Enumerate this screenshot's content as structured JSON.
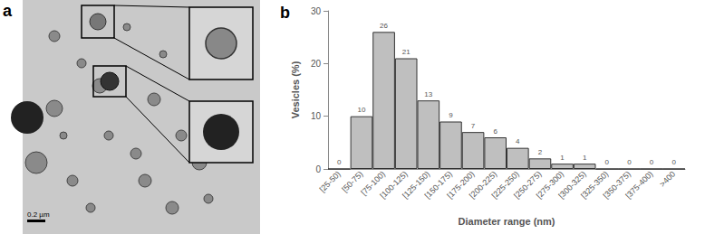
{
  "image": {
    "label": "a",
    "scale_bar": "0.2 µm"
  },
  "chart_data": {
    "type": "bar",
    "title": "b",
    "x_label": "Diameter range (nm)",
    "y_label": "Vesicles (%)",
    "categories": [
      "[25-50)",
      "[50-75)",
      "[75-100)",
      "[100-125)",
      "[125-150)",
      "[150-175)",
      "[175-200)",
      "[200-225)",
      "[225-250)",
      "[250-275)",
      "[275-300)",
      "[300-325)",
      "[325-350)",
      "[350-375)",
      "[375-400)",
      ">400"
    ],
    "values": [
      0,
      10,
      26,
      21,
      13,
      9,
      7,
      6,
      4,
      2,
      1,
      1,
      0,
      0,
      0,
      0
    ],
    "color": "#bfbfbf",
    "ylim": [
      0,
      30
    ],
    "yticks": [
      0,
      10,
      20,
      30
    ],
    "grid": false,
    "data_labels": true
  }
}
